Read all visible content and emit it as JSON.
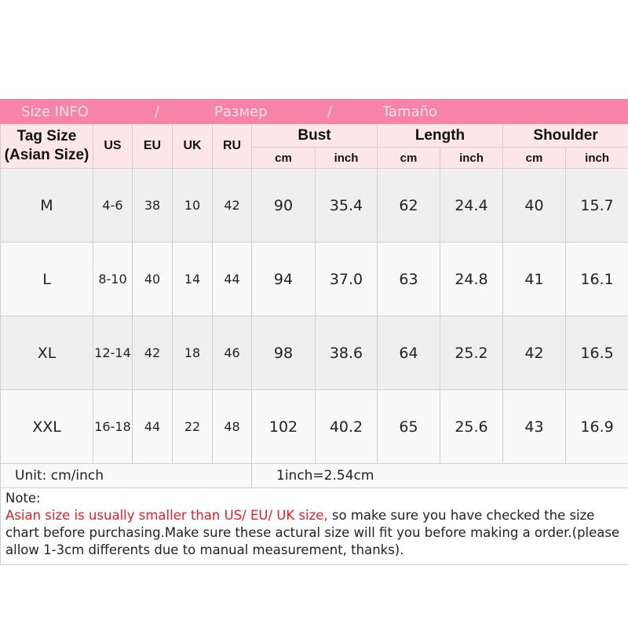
{
  "title_bar": {
    "parts": [
      "Size INFO",
      "/",
      "Размер",
      "/",
      "Tamaño"
    ],
    "color": "#f783a8"
  },
  "headers": {
    "tag_size": "Tag Size",
    "asian_size": "(Asian Size)",
    "us": "US",
    "eu": "EU",
    "uk": "UK",
    "ru": "RU",
    "bust": "Bust",
    "length": "Length",
    "shoulder": "Shoulder",
    "cm": "cm",
    "inch": "inch"
  },
  "rows": [
    {
      "tag": "M",
      "us": "4-6",
      "eu": "38",
      "uk": "10",
      "ru": "42",
      "bust_cm": "90",
      "bust_in": "35.4",
      "len_cm": "62",
      "len_in": "24.4",
      "sh_cm": "40",
      "sh_in": "15.7"
    },
    {
      "tag": "L",
      "us": "8-10",
      "eu": "40",
      "uk": "14",
      "ru": "44",
      "bust_cm": "94",
      "bust_in": "37.0",
      "len_cm": "63",
      "len_in": "24.8",
      "sh_cm": "41",
      "sh_in": "16.1"
    },
    {
      "tag": "XL",
      "us": "12-14",
      "eu": "42",
      "uk": "18",
      "ru": "46",
      "bust_cm": "98",
      "bust_in": "38.6",
      "len_cm": "64",
      "len_in": "25.2",
      "sh_cm": "42",
      "sh_in": "16.5"
    },
    {
      "tag": "XXL",
      "us": "16-18",
      "eu": "44",
      "uk": "22",
      "ru": "48",
      "bust_cm": "102",
      "bust_in": "40.2",
      "len_cm": "65",
      "len_in": "25.6",
      "sh_cm": "43",
      "sh_in": "16.9"
    }
  ],
  "unit": {
    "label": "Unit: cm/inch",
    "conversion": "1inch=2.54cm"
  },
  "note": {
    "heading": "Note:",
    "warning": "Asian size is usually smaller than US/ EU/ UK size,",
    "body": " so make sure you have checked the size chart before purchasing.Make sure these actural size will fit you before making a order.(please allow 1-3cm differents due to manual measurement, thanks)."
  }
}
